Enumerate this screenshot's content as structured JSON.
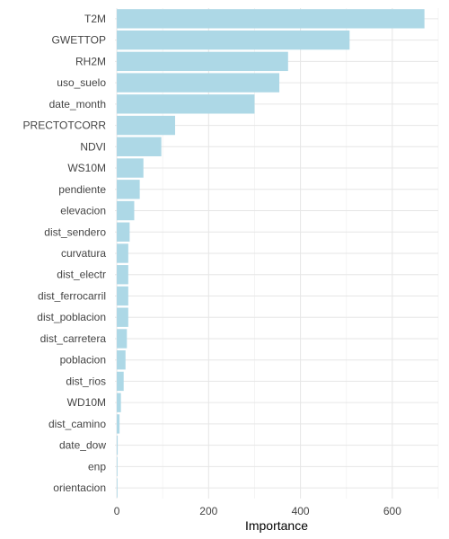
{
  "chart_data": {
    "type": "bar",
    "orientation": "horizontal",
    "categories": [
      "T2M",
      "GWETTOP",
      "RH2M",
      "uso_suelo",
      "date_month",
      "PRECTOTCORR",
      "NDVI",
      "WS10M",
      "pendiente",
      "elevacion",
      "dist_sendero",
      "curvatura",
      "dist_electr",
      "dist_ferrocarril",
      "dist_poblacion",
      "dist_carretera",
      "poblacion",
      "dist_rios",
      "WD10M",
      "dist_camino",
      "date_dow",
      "enp",
      "orientacion"
    ],
    "values": [
      670,
      507,
      373,
      354,
      300,
      127,
      97,
      58,
      50,
      38,
      28,
      25,
      25,
      25,
      25,
      22,
      19,
      15,
      9,
      6,
      2,
      1,
      1
    ],
    "xlabel": "Importance",
    "ylabel": "",
    "title": "",
    "xlim": [
      -4,
      700
    ],
    "xticks": [
      0,
      200,
      400,
      600
    ],
    "xtick_labels": [
      "0",
      "200",
      "400",
      "600"
    ],
    "bar_color": "#add8e6",
    "grid": true,
    "legend": "none"
  }
}
